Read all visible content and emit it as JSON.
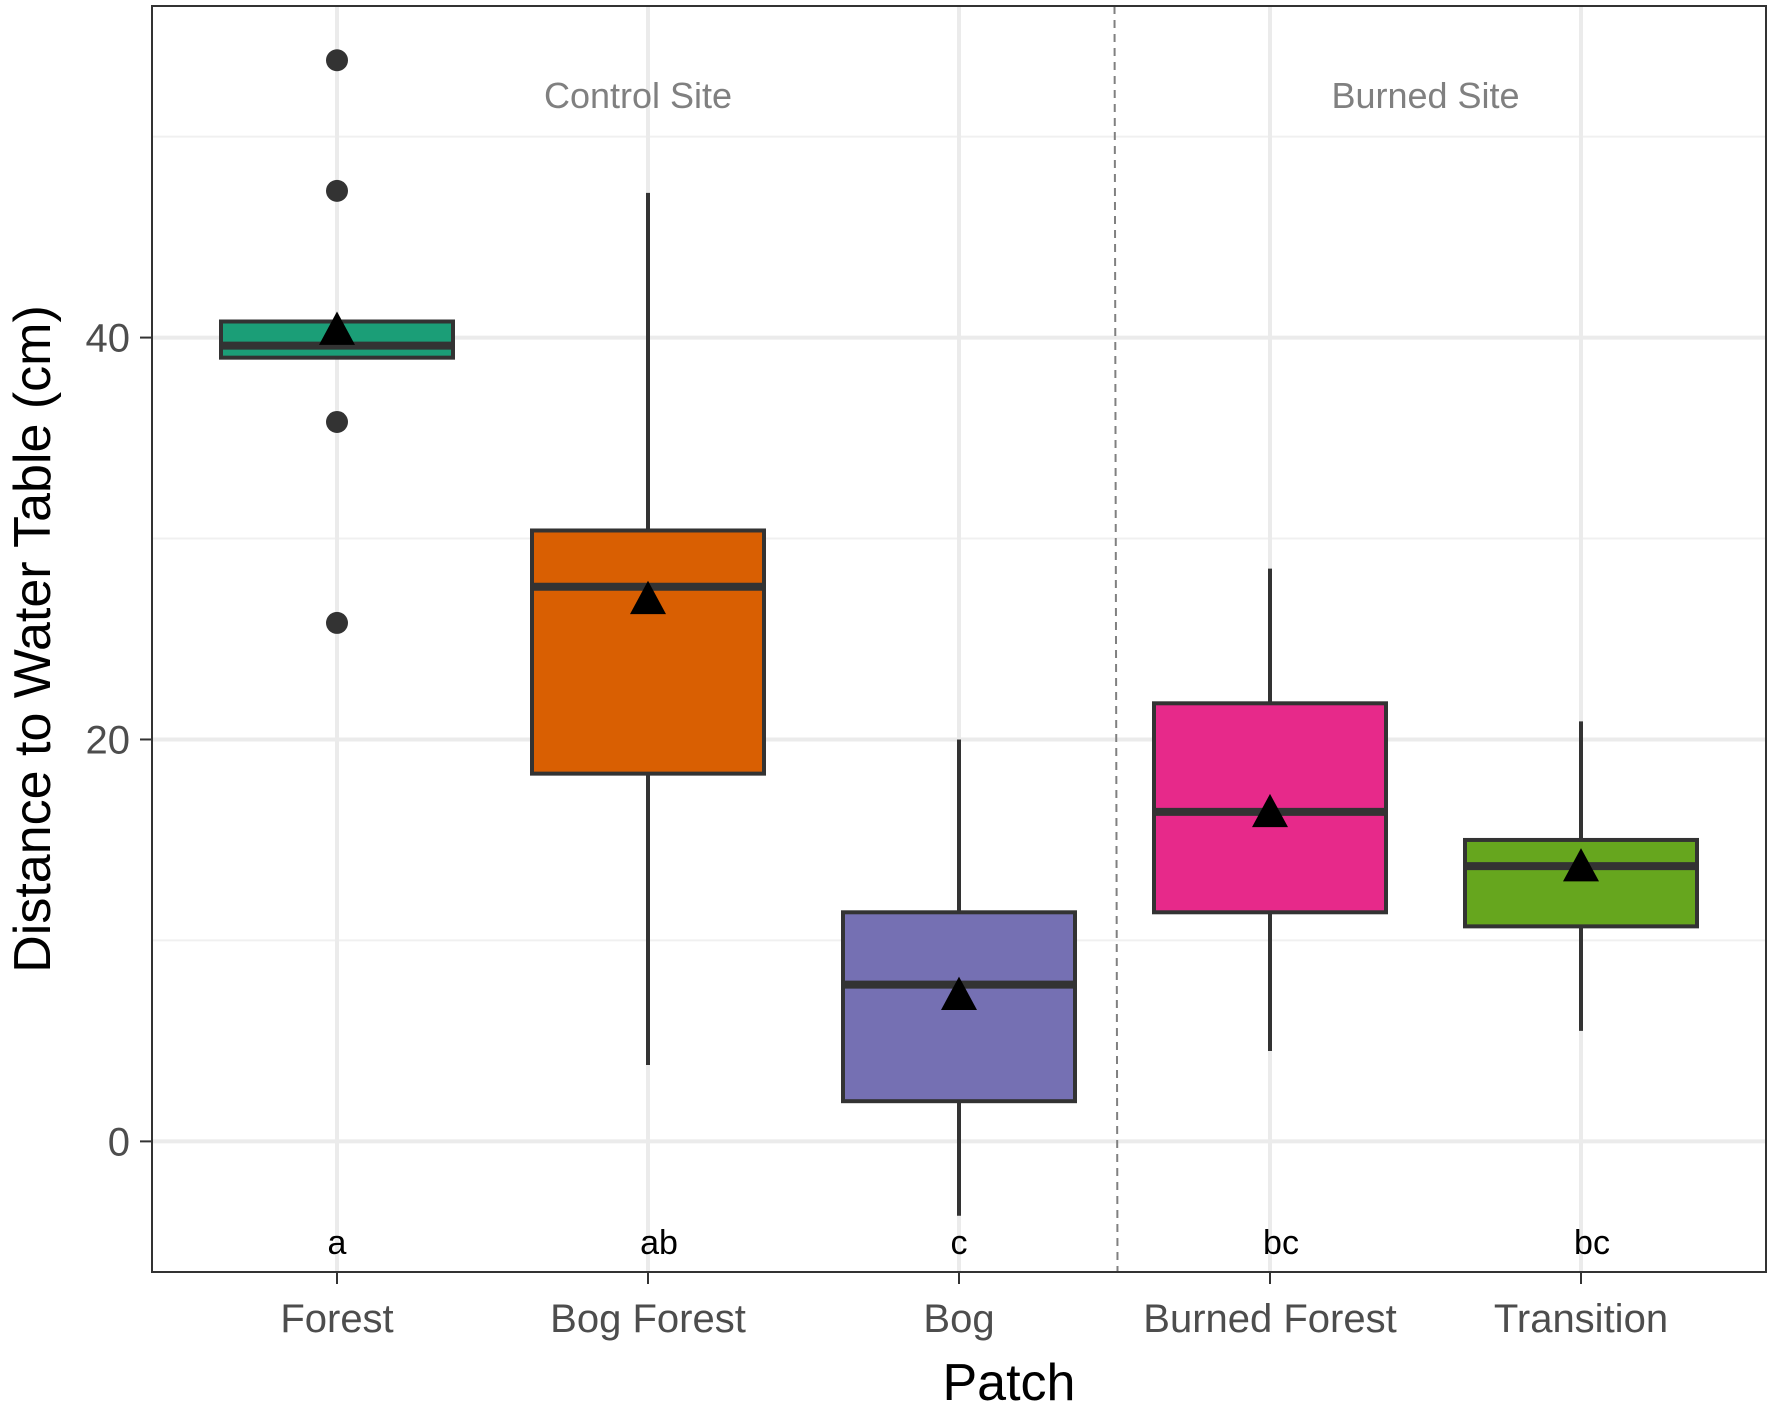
{
  "chart_data": {
    "type": "boxplot",
    "xlabel": "Patch",
    "ylabel": "Distance to Water Table (cm)",
    "ylim": [
      -6.5,
      56.5
    ],
    "y_ticks": [
      0,
      20,
      40
    ],
    "grid": true,
    "categories": [
      "Forest",
      "Bog Forest",
      "Bog",
      "Burned Forest",
      "Transition"
    ],
    "groups": [
      {
        "label": "Control Site",
        "categories": [
          "Forest",
          "Bog Forest",
          "Bog"
        ]
      },
      {
        "label": "Burned Site",
        "categories": [
          "Burned Forest",
          "Transition"
        ]
      }
    ],
    "boxes": [
      {
        "category": "Forest",
        "whisker_low": 39.0,
        "q1": 39.0,
        "median": 39.6,
        "q3": 40.8,
        "whisker_high": 40.8,
        "mean": 40.4,
        "outliers": [
          53.8,
          47.3,
          35.8,
          25.8
        ],
        "color": "#1b9e77",
        "letter": "a"
      },
      {
        "category": "Bog Forest",
        "whisker_low": 3.8,
        "q1": 18.3,
        "median": 27.6,
        "q3": 30.4,
        "whisker_high": 47.2,
        "mean": 27.0,
        "outliers": [],
        "color": "#d95f02",
        "letter": "ab"
      },
      {
        "category": "Bog",
        "whisker_low": -3.7,
        "q1": 2.0,
        "median": 7.8,
        "q3": 11.4,
        "whisker_high": 20.0,
        "mean": 7.3,
        "outliers": [],
        "color": "#7570b3",
        "letter": "c"
      },
      {
        "category": "Burned Forest",
        "whisker_low": 4.5,
        "q1": 11.4,
        "median": 16.4,
        "q3": 21.8,
        "whisker_high": 28.5,
        "mean": 16.4,
        "outliers": [],
        "color": "#e7298a",
        "letter": "bc"
      },
      {
        "category": "Transition",
        "whisker_low": 5.5,
        "q1": 10.7,
        "median": 13.7,
        "q3": 15.0,
        "whisker_high": 20.9,
        "mean": 13.7,
        "outliers": [],
        "color": "#66a61e",
        "letter": "bc"
      }
    ]
  }
}
